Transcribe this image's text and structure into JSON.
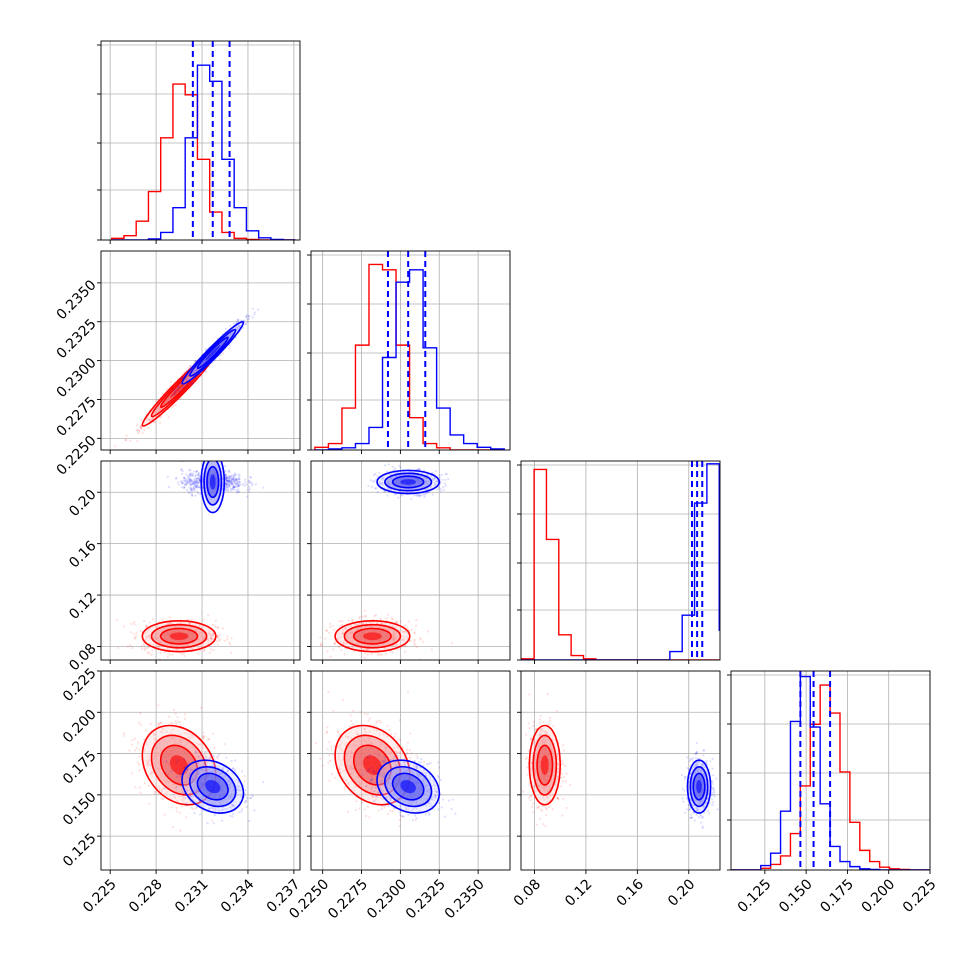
{
  "chart_data": {
    "type": "corner",
    "grid": true,
    "parameters": 4,
    "series": [
      {
        "color": "#ff0000",
        "means": [
          0.2295,
          0.2282,
          0.088,
          0.168
        ],
        "stds": [
          0.0012,
          0.0012,
          0.006,
          0.012
        ]
      },
      {
        "color": "#0000ff",
        "means": [
          0.2317,
          0.2305,
          0.208,
          0.155
        ],
        "stds": [
          0.001,
          0.001,
          0.0045,
          0.008
        ]
      }
    ],
    "correlations": {
      "p0_p1": 0.97,
      "p0_p3": -0.25,
      "p1_p3": -0.25
    },
    "quantile_lines": {
      "color": "#0000ff",
      "p0": [
        0.2304,
        0.2317,
        0.2328
      ],
      "p1": [
        0.2292,
        0.2305,
        0.2316
      ],
      "p2": [
        0.2025,
        0.2065,
        0.2105
      ],
      "p3": [
        0.1465,
        0.1545,
        0.1645
      ]
    },
    "histograms": {
      "p0": {
        "bin_edges": [
          0.2251,
          0.2259,
          0.2267,
          0.2275,
          0.2283,
          0.2291,
          0.2299,
          0.2307,
          0.2315,
          0.2323,
          0.2331,
          0.2339,
          0.2347,
          0.2355,
          0.2363,
          0.2371
        ],
        "red": [
          3,
          8,
          35,
          90,
          190,
          290,
          270,
          150,
          52,
          14,
          3,
          1,
          0,
          0,
          0
        ],
        "blue": [
          0,
          0,
          0,
          2,
          14,
          60,
          190,
          325,
          295,
          150,
          60,
          17,
          4,
          1,
          0
        ]
      },
      "p1": {
        "bin_edges": [
          0.2245,
          0.22537,
          0.22624,
          0.22711,
          0.22798,
          0.22885,
          0.22972,
          0.23059,
          0.23146,
          0.23233,
          0.2332,
          0.23407,
          0.23494,
          0.23581,
          0.23668
        ],
        "red": [
          5,
          12,
          78,
          195,
          345,
          335,
          195,
          60,
          12,
          4,
          0,
          0,
          0,
          0
        ],
        "blue": [
          0,
          2,
          4,
          12,
          42,
          172,
          312,
          335,
          190,
          78,
          28,
          12,
          5,
          2
        ]
      },
      "p2": {
        "bin_edges": [
          0.0701,
          0.0797,
          0.0893,
          0.0989,
          0.1085,
          0.1181,
          0.1277,
          0.1373,
          0.1469,
          0.1565,
          0.1661,
          0.1757,
          0.1853,
          0.1949,
          0.2045,
          0.2141,
          0.2237
        ],
        "red": [
          2,
          340,
          215,
          45,
          8,
          2,
          0,
          0,
          0,
          0,
          0,
          0,
          0,
          0,
          0,
          0
        ],
        "blue": [
          0,
          0,
          0,
          0,
          0,
          0,
          0,
          0,
          0,
          0,
          0,
          0,
          15,
          80,
          280,
          350,
          52
        ]
      },
      "p3": {
        "bin_edges": [
          0.1045,
          0.1105,
          0.1165,
          0.1225,
          0.1285,
          0.1345,
          0.1405,
          0.1465,
          0.1525,
          0.1585,
          0.1645,
          0.1705,
          0.1765,
          0.1825,
          0.1885,
          0.1945,
          0.2005,
          0.2065,
          0.2125,
          0.2185,
          0.2245
        ],
        "red": [
          0,
          0,
          0,
          3,
          10,
          25,
          65,
          150,
          260,
          330,
          280,
          175,
          85,
          35,
          15,
          5,
          2,
          1,
          0,
          0
        ],
        "blue": [
          0,
          0,
          0,
          8,
          30,
          105,
          265,
          345,
          255,
          118,
          42,
          15,
          6,
          2,
          1,
          0,
          0,
          0,
          0,
          0
        ]
      }
    },
    "axes": {
      "p0": {
        "range": [
          0.2244,
          0.2374
        ],
        "ticks": [
          "0.225",
          "0.228",
          "0.231",
          "0.234",
          "0.237"
        ]
      },
      "p1": {
        "range": [
          0.22425,
          0.23705
        ],
        "ticks": [
          "0.2250",
          "0.2275",
          "0.2300",
          "0.2325",
          "0.2350"
        ]
      },
      "p2": {
        "range": [
          0.0695,
          0.2243
        ],
        "ticks": [
          "0.08",
          "0.12",
          "0.16",
          "0.20"
        ]
      },
      "p3": {
        "range": [
          0.1045,
          0.225
        ],
        "ticks": [
          "0.125",
          "0.150",
          "0.175",
          "0.200",
          "0.225"
        ]
      }
    }
  }
}
